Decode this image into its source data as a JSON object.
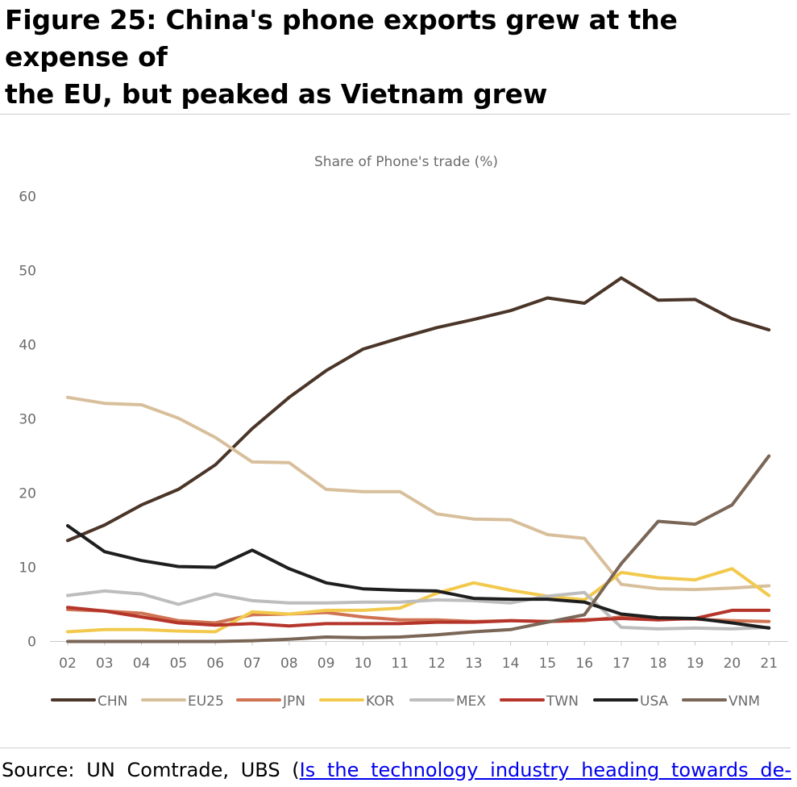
{
  "figure": {
    "title_line1": "Figure 25: China's phone exports grew at the expense of",
    "title_line2": "the EU, but peaked as Vietnam grew"
  },
  "source": {
    "prefix": "Source: UN Comtrade, UBS (",
    "link_text": "Is the technology industry heading towards de-"
  },
  "chart_data": {
    "type": "line",
    "title": "Share of Phone's trade (%)",
    "xlabel": "",
    "ylabel": "",
    "categories": [
      "02",
      "03",
      "04",
      "05",
      "06",
      "07",
      "08",
      "09",
      "10",
      "11",
      "12",
      "13",
      "14",
      "15",
      "16",
      "17",
      "18",
      "19",
      "20",
      "21"
    ],
    "ylim": [
      0,
      60
    ],
    "yticks": [
      0,
      10,
      20,
      30,
      40,
      50,
      60
    ],
    "grid": false,
    "legend_position": "bottom",
    "series": [
      {
        "name": "CHN",
        "color": "#4a3528",
        "values": [
          13.6,
          15.7,
          18.4,
          20.5,
          23.8,
          28.7,
          32.9,
          36.5,
          39.4,
          40.9,
          42.3,
          43.4,
          44.6,
          46.3,
          45.6,
          49.0,
          46.0,
          46.1,
          43.5,
          42.0
        ]
      },
      {
        "name": "EU25",
        "color": "#d8bf9c",
        "values": [
          32.9,
          32.1,
          31.9,
          30.1,
          27.5,
          24.2,
          24.1,
          20.5,
          20.2,
          20.2,
          17.2,
          16.5,
          16.4,
          14.4,
          13.9,
          7.7,
          7.1,
          7.0,
          7.2,
          7.5
        ]
      },
      {
        "name": "JPN",
        "color": "#d07352",
        "values": [
          4.3,
          4.1,
          3.8,
          2.8,
          2.5,
          3.6,
          3.7,
          3.9,
          3.3,
          2.9,
          2.9,
          2.7,
          2.8,
          2.7,
          2.8,
          3.3,
          3.1,
          3.0,
          2.8,
          2.7
        ]
      },
      {
        "name": "KOR",
        "color": "#f2c94c",
        "values": [
          1.3,
          1.6,
          1.6,
          1.4,
          1.3,
          4.0,
          3.7,
          4.2,
          4.2,
          4.5,
          6.5,
          7.9,
          6.9,
          6.1,
          5.6,
          9.3,
          8.6,
          8.3,
          9.8,
          6.2
        ]
      },
      {
        "name": "MEX",
        "color": "#bdbdbd",
        "values": [
          6.2,
          6.8,
          6.4,
          5.0,
          6.4,
          5.5,
          5.2,
          5.2,
          5.3,
          5.3,
          5.6,
          5.5,
          5.2,
          6.1,
          6.6,
          1.9,
          1.7,
          1.8,
          1.7,
          1.9
        ]
      },
      {
        "name": "TWN",
        "color": "#b5352a",
        "values": [
          4.6,
          4.1,
          3.3,
          2.5,
          2.2,
          2.4,
          2.1,
          2.4,
          2.4,
          2.4,
          2.6,
          2.6,
          2.8,
          2.7,
          2.9,
          3.1,
          2.9,
          3.1,
          4.2,
          4.2
        ]
      },
      {
        "name": "USA",
        "color": "#1e1e1e",
        "values": [
          15.6,
          12.1,
          10.9,
          10.1,
          10.0,
          12.3,
          9.8,
          7.9,
          7.1,
          6.9,
          6.8,
          5.8,
          5.7,
          5.7,
          5.3,
          3.7,
          3.2,
          3.1,
          2.5,
          1.8
        ]
      },
      {
        "name": "VNM",
        "color": "#7a6656",
        "values": [
          0.0,
          0.0,
          0.0,
          0.0,
          0.0,
          0.1,
          0.3,
          0.6,
          0.5,
          0.6,
          0.9,
          1.3,
          1.6,
          2.6,
          3.6,
          10.5,
          16.2,
          15.8,
          18.4,
          25.0
        ]
      }
    ]
  }
}
